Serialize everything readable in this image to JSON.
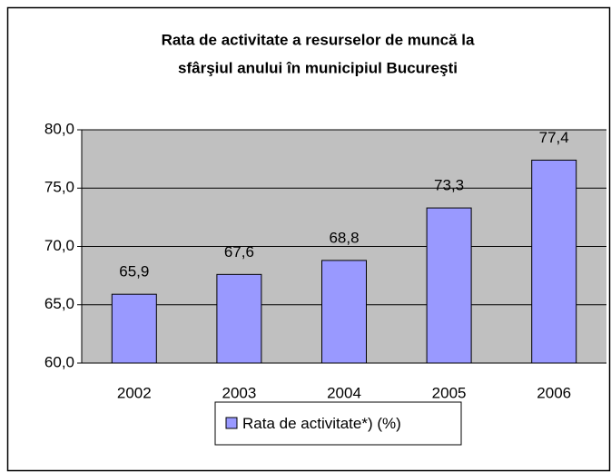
{
  "chart_data": {
    "type": "bar",
    "title": [
      "Rata de activitate a resurselor de muncă la",
      "sfârşiul anului în municipiul Bucureşti"
    ],
    "categories": [
      "2002",
      "2003",
      "2004",
      "2005",
      "2006"
    ],
    "series": [
      {
        "name": "Rata de activitate*) (%)",
        "color": "#9999ff",
        "values": [
          65.9,
          67.6,
          68.8,
          73.3,
          77.4
        ],
        "value_labels": [
          "65,9",
          "67,6",
          "68,8",
          "73,3",
          "77,4"
        ]
      }
    ],
    "ylim": [
      60,
      80
    ],
    "yticks": [
      {
        "value": 60,
        "label": "60,0"
      },
      {
        "value": 65,
        "label": "65,0"
      },
      {
        "value": 70,
        "label": "70,0"
      },
      {
        "value": 75,
        "label": "75,0"
      },
      {
        "value": 80,
        "label": "80,0"
      }
    ],
    "grid": true,
    "legend": "bottom"
  }
}
